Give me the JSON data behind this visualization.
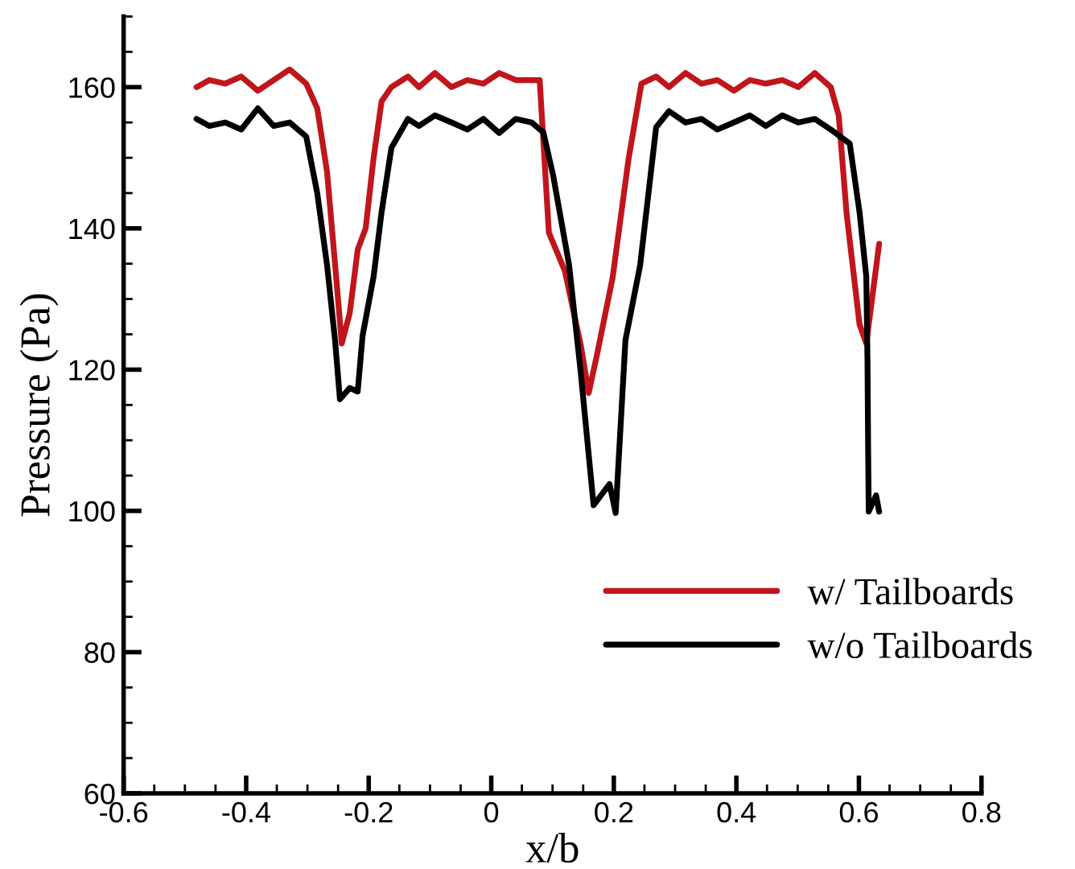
{
  "chart_data": {
    "type": "line",
    "xlabel": "x/b",
    "ylabel": "Pressure (Pa)",
    "xlim": [
      -0.6,
      0.8
    ],
    "ylim": [
      60,
      170
    ],
    "xticks": [
      -0.6,
      -0.4,
      -0.2,
      0,
      0.2,
      0.4,
      0.6,
      0.8
    ],
    "yticks": [
      60,
      80,
      100,
      120,
      140,
      160
    ],
    "grid": false,
    "legend": "bottom right",
    "marker": "none",
    "line_style": "solid",
    "series": [
      {
        "name": "w/ Tailboards",
        "color": "#c0161b",
        "x": [
          -0.481,
          -0.46,
          -0.434,
          -0.408,
          -0.381,
          -0.355,
          -0.329,
          -0.302,
          -0.284,
          -0.268,
          -0.255,
          -0.244,
          -0.231,
          -0.218,
          -0.205,
          -0.192,
          -0.179,
          -0.163,
          -0.136,
          -0.118,
          -0.092,
          -0.065,
          -0.039,
          -0.013,
          0.013,
          0.04,
          0.066,
          0.079,
          0.094,
          0.12,
          0.146,
          0.159,
          0.172,
          0.198,
          0.224,
          0.245,
          0.269,
          0.29,
          0.317,
          0.343,
          0.369,
          0.396,
          0.422,
          0.448,
          0.475,
          0.501,
          0.528,
          0.554,
          0.567,
          0.58,
          0.601,
          0.612,
          0.633
        ],
        "values": [
          160,
          161,
          160.5,
          161.5,
          159.5,
          161,
          162.5,
          160.5,
          157,
          148,
          135,
          123.7,
          128,
          137,
          140,
          150,
          158,
          160,
          161.5,
          160,
          162,
          160,
          161,
          160.5,
          162,
          161,
          161,
          161,
          139.4,
          134,
          123.5,
          116.7,
          121.9,
          133,
          149.8,
          160.5,
          161.5,
          160,
          162,
          160.5,
          161,
          159.5,
          161,
          160.5,
          161,
          160,
          162,
          160,
          156,
          142,
          126.4,
          123.7,
          137.8
        ]
      },
      {
        "name": "w/o Tailboards",
        "color": "#000000",
        "x": [
          -0.481,
          -0.46,
          -0.434,
          -0.408,
          -0.381,
          -0.355,
          -0.329,
          -0.302,
          -0.284,
          -0.268,
          -0.255,
          -0.247,
          -0.231,
          -0.218,
          -0.21,
          -0.192,
          -0.179,
          -0.163,
          -0.136,
          -0.118,
          -0.092,
          -0.065,
          -0.039,
          -0.013,
          0.013,
          0.04,
          0.066,
          0.085,
          0.101,
          0.127,
          0.146,
          0.167,
          0.193,
          0.203,
          0.219,
          0.243,
          0.269,
          0.29,
          0.317,
          0.343,
          0.369,
          0.396,
          0.422,
          0.448,
          0.475,
          0.501,
          0.528,
          0.554,
          0.585,
          0.601,
          0.612,
          0.614,
          0.615,
          0.616,
          0.628,
          0.633
        ],
        "values": [
          155.5,
          154.5,
          155,
          154,
          157,
          154.5,
          155,
          153,
          145,
          134.8,
          124.2,
          115.8,
          117.4,
          116.9,
          124.8,
          133.2,
          142.3,
          151.4,
          155.5,
          154.5,
          156,
          155,
          154,
          155.5,
          153.5,
          155.5,
          155,
          153.6,
          147.5,
          134.8,
          119.6,
          100.8,
          103.8,
          99.7,
          124.2,
          134.8,
          154.3,
          156.6,
          155,
          155.5,
          154,
          155,
          156,
          154.5,
          156,
          155,
          155.5,
          154,
          152,
          142.3,
          133.2,
          121.2,
          109,
          99.9,
          102.2,
          99.9
        ]
      }
    ]
  }
}
